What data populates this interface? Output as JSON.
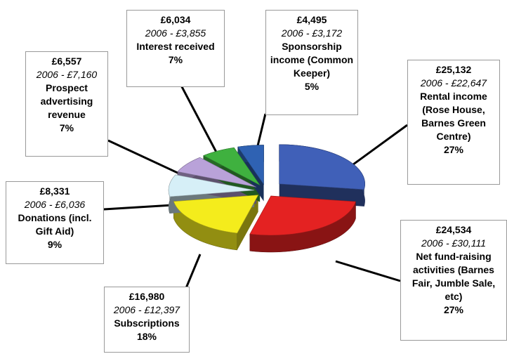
{
  "chart_data": {
    "type": "pie",
    "categories": [
      "Rental income (Rose House, Barnes Green Centre)",
      "Net fund-raising activities (Barnes Fair, Jumble Sale, etc)",
      "Subscriptions",
      "Donations (incl. Gift Aid)",
      "Prospect advertising revenue",
      "Interest received",
      "Sponsorship income (Common Keeper)"
    ],
    "values": [
      25132,
      24534,
      16980,
      8331,
      6557,
      6034,
      4495
    ],
    "value_labels": [
      "£25,132",
      "£24,534",
      "£16,980",
      "£8,331",
      "£6,557",
      "£6,034",
      "£4,495"
    ],
    "prior_labels": [
      "2006 - £22,647",
      "2006 - £30,111",
      "2006 - £12,397",
      "2006 - £6,036",
      "2006 - £7,160",
      "2006 - £3,855",
      "2006 - £3,172"
    ],
    "percent_labels": [
      "27%",
      "27%",
      "18%",
      "9%",
      "7%",
      "7%",
      "5%"
    ],
    "colors": [
      "#4060b8",
      "#e42222",
      "#f4ec1c",
      "#d6eff7",
      "#b9a2d9",
      "#3fb13f",
      "#2f62b3"
    ]
  }
}
